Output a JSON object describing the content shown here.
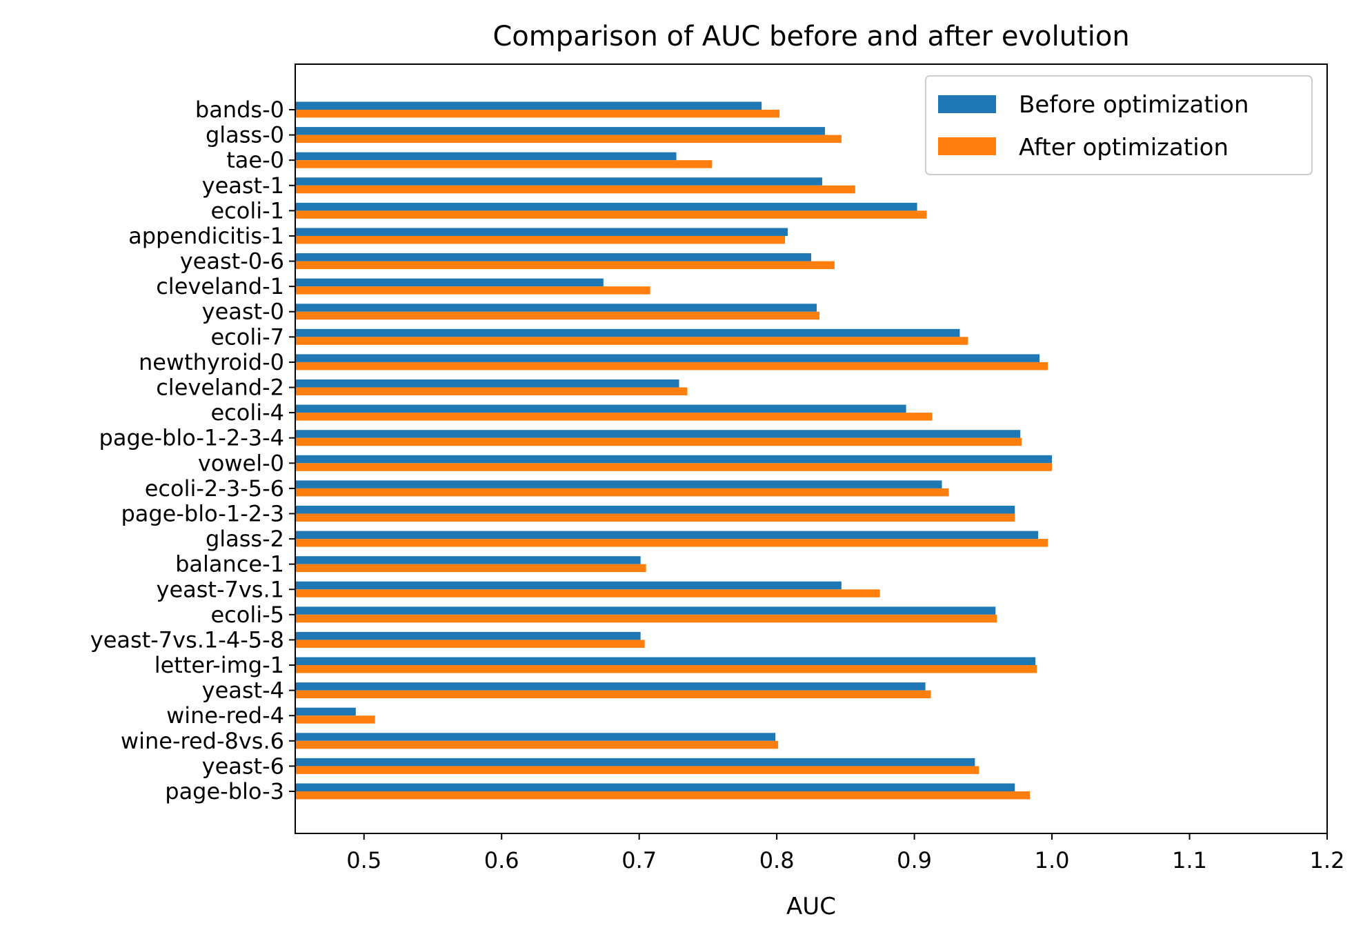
{
  "chart_data": {
    "type": "bar",
    "orientation": "horizontal",
    "title": "Comparison of AUC before and after evolution",
    "xlabel": "AUC",
    "ylabel": "",
    "xlim": [
      0.45,
      1.2
    ],
    "xticks": [
      0.5,
      0.6,
      0.7,
      0.8,
      0.9,
      1.0,
      1.1,
      1.2
    ],
    "xtick_labels": [
      "0.5",
      "0.6",
      "0.7",
      "0.8",
      "0.9",
      "1.0",
      "1.1",
      "1.2"
    ],
    "grid": false,
    "legend_position": "top-right",
    "categories": [
      "bands-0",
      "glass-0",
      "tae-0",
      "yeast-1",
      "ecoli-1",
      "appendicitis-1",
      "yeast-0-6",
      "cleveland-1",
      "yeast-0",
      "ecoli-7",
      "newthyroid-0",
      "cleveland-2",
      "ecoli-4",
      "page-blo-1-2-3-4",
      "vowel-0",
      "ecoli-2-3-5-6",
      "page-blo-1-2-3",
      "glass-2",
      "balance-1",
      "yeast-7vs.1",
      "ecoli-5",
      "yeast-7vs.1-4-5-8",
      "letter-img-1",
      "yeast-4",
      "wine-red-4",
      "wine-red-8vs.6",
      "yeast-6",
      "page-blo-3"
    ],
    "series": [
      {
        "name": "Before optimization",
        "color": "#1f77b4",
        "values": [
          0.789,
          0.835,
          0.727,
          0.833,
          0.902,
          0.808,
          0.825,
          0.674,
          0.829,
          0.933,
          0.991,
          0.729,
          0.894,
          0.977,
          1.0,
          0.92,
          0.973,
          0.99,
          0.701,
          0.847,
          0.959,
          0.701,
          0.988,
          0.908,
          0.494,
          0.799,
          0.944,
          0.973
        ]
      },
      {
        "name": "After optimization",
        "color": "#ff7f0e",
        "values": [
          0.802,
          0.847,
          0.753,
          0.857,
          0.909,
          0.806,
          0.842,
          0.708,
          0.831,
          0.939,
          0.997,
          0.735,
          0.913,
          0.978,
          1.0,
          0.925,
          0.973,
          0.997,
          0.705,
          0.875,
          0.96,
          0.704,
          0.989,
          0.912,
          0.508,
          0.801,
          0.947,
          0.984
        ]
      }
    ]
  }
}
